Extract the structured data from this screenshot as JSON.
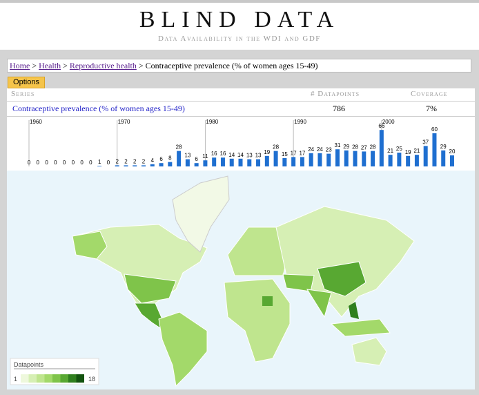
{
  "header": {
    "title": "BLIND DATA",
    "subtitle": "Data Availability in the WDI and GDF"
  },
  "breadcrumb": {
    "links": [
      "Home",
      "Health",
      "Reproductive health"
    ],
    "separator": ">",
    "current": "Contraceptive prevalence (% of women ages 15-49)"
  },
  "options": "Options",
  "table": {
    "columns": [
      "Series",
      "# Datapoints",
      "Coverage"
    ],
    "rows": [
      [
        "Contraceptive prevalence (% of women ages 15-49)",
        "786",
        "7%"
      ]
    ]
  },
  "chart_data": {
    "type": "bar",
    "x": [
      1960,
      1961,
      1962,
      1963,
      1964,
      1965,
      1966,
      1967,
      1968,
      1969,
      1970,
      1971,
      1972,
      1973,
      1974,
      1975,
      1976,
      1977,
      1978,
      1979,
      1980,
      1981,
      1982,
      1983,
      1984,
      1985,
      1986,
      1987,
      1988,
      1989,
      1990,
      1991,
      1992,
      1993,
      1994,
      1995,
      1996,
      1997,
      1998,
      1999,
      2000,
      2001,
      2002,
      2003,
      2004,
      2005,
      2006,
      2007,
      2008
    ],
    "values": [
      0,
      0,
      0,
      0,
      0,
      0,
      0,
      0,
      1,
      0,
      2,
      2,
      2,
      2,
      4,
      6,
      8,
      28,
      13,
      6,
      11,
      16,
      16,
      14,
      14,
      13,
      13,
      19,
      28,
      15,
      17,
      17,
      24,
      24,
      23,
      31,
      29,
      28,
      27,
      28,
      66,
      21,
      25,
      19,
      21,
      37,
      60,
      29,
      20
    ],
    "color": "#1f6fd0",
    "xlim": [
      1960,
      2008
    ],
    "xticks": [
      1960,
      1970,
      1980,
      1990,
      2000
    ],
    "ylim": [
      0,
      70
    ]
  },
  "map": {
    "legend": {
      "title": "Datapoints",
      "min": 1,
      "max": 18,
      "colors": [
        "#eef8dc",
        "#d6efb4",
        "#bfe58e",
        "#a3d96a",
        "#7fc44a",
        "#58a832",
        "#2f7f1e",
        "#13530f"
      ]
    }
  }
}
